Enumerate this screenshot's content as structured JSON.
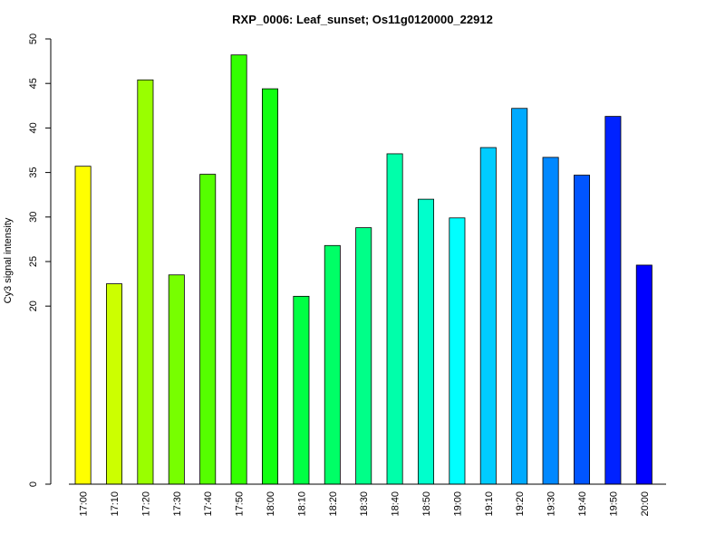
{
  "chart_data": {
    "type": "bar",
    "title": "RXP_0006: Leaf_sunset; Os11g0120000_22912",
    "xlabel": "",
    "ylabel": "Cy3 signal intensity",
    "categories": [
      "17:00",
      "17:10",
      "17:20",
      "17:30",
      "17:40",
      "17:50",
      "18:00",
      "18:10",
      "18:20",
      "18:30",
      "18:40",
      "18:50",
      "19:00",
      "19:10",
      "19:20",
      "19:30",
      "19:40",
      "19:50",
      "20:00"
    ],
    "values": [
      35.7,
      22.5,
      45.4,
      23.5,
      34.8,
      48.2,
      44.4,
      21.1,
      26.8,
      28.8,
      37.1,
      32.0,
      29.9,
      37.8,
      42.2,
      36.7,
      34.7,
      41.3,
      24.6
    ],
    "colors": [
      "#ffff00",
      "#ccff00",
      "#99ff00",
      "#77ff00",
      "#55ff00",
      "#33ff00",
      "#11ff11",
      "#00ff44",
      "#00ff66",
      "#00ff88",
      "#00ffaa",
      "#00ffcc",
      "#00ffff",
      "#00ccff",
      "#00aaff",
      "#0088ff",
      "#0055ff",
      "#0022ff",
      "#0000ff"
    ],
    "yticks": [
      0,
      20,
      25,
      30,
      35,
      40,
      45,
      50
    ],
    "ylim": [
      0,
      50
    ],
    "grid": false,
    "legend": "none"
  }
}
